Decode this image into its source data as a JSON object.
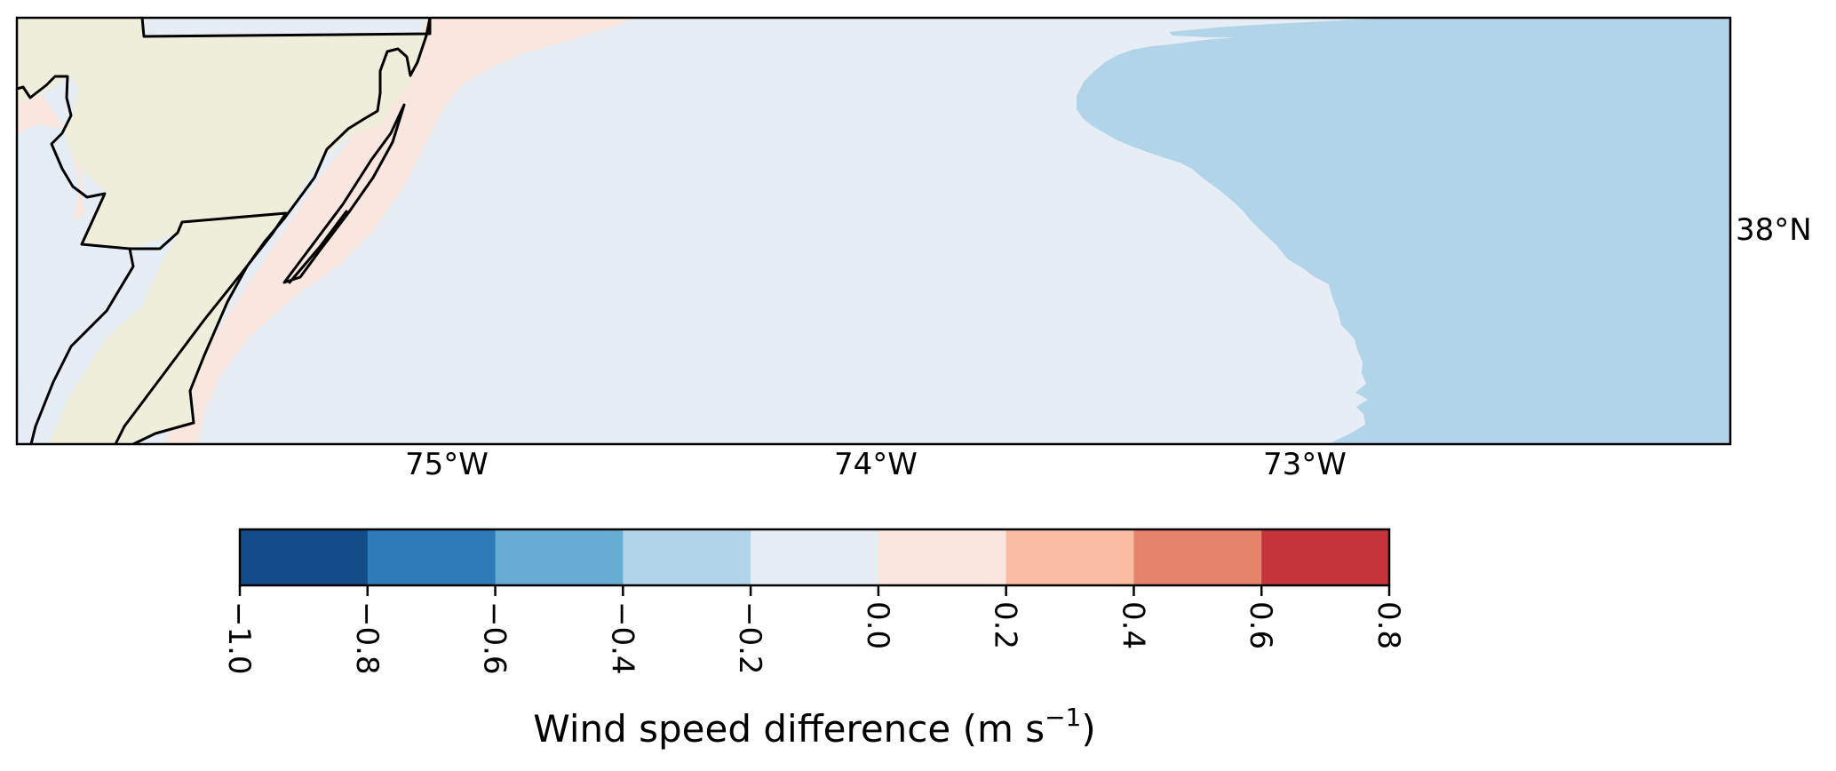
{
  "map": {
    "lon_ticks": [
      "75°W",
      "74°W",
      "73°W"
    ],
    "lat_ticks": [
      "38°N"
    ],
    "zones": [
      {
        "name": "land",
        "color": "#efeedb"
      },
      {
        "name": "inland-water",
        "color": "#e4ecf4"
      },
      {
        "name": "positive-band",
        "color": "#f9e6de"
      },
      {
        "name": "near-zero-ocean",
        "color": "#e6edf5"
      },
      {
        "name": "offshore-negative",
        "color": "#b2d4e8"
      }
    ],
    "coastline_color": "#000000"
  },
  "colorbar": {
    "label_main": "Wind speed difference (m s",
    "label_exp": "−1",
    "label_close": ")",
    "bins": [
      {
        "from": -1.0,
        "to": -0.8,
        "color": "#134b88"
      },
      {
        "from": -0.8,
        "to": -0.6,
        "color": "#2f7ab9"
      },
      {
        "from": -0.6,
        "to": -0.4,
        "color": "#66acd3"
      },
      {
        "from": -0.4,
        "to": -0.2,
        "color": "#b2d4e8"
      },
      {
        "from": -0.2,
        "to": 0.0,
        "color": "#e6edf5"
      },
      {
        "from": 0.0,
        "to": 0.2,
        "color": "#f9e6de"
      },
      {
        "from": 0.2,
        "to": 0.4,
        "color": "#f9bca2"
      },
      {
        "from": 0.4,
        "to": 0.6,
        "color": "#e5846a"
      },
      {
        "from": 0.6,
        "to": 0.8,
        "color": "#c6353b"
      }
    ],
    "tick_labels": [
      "−1.0",
      "−0.8",
      "−0.6",
      "−0.4",
      "−0.2",
      "0.0",
      "0.2",
      "0.4",
      "0.6",
      "0.8"
    ]
  }
}
